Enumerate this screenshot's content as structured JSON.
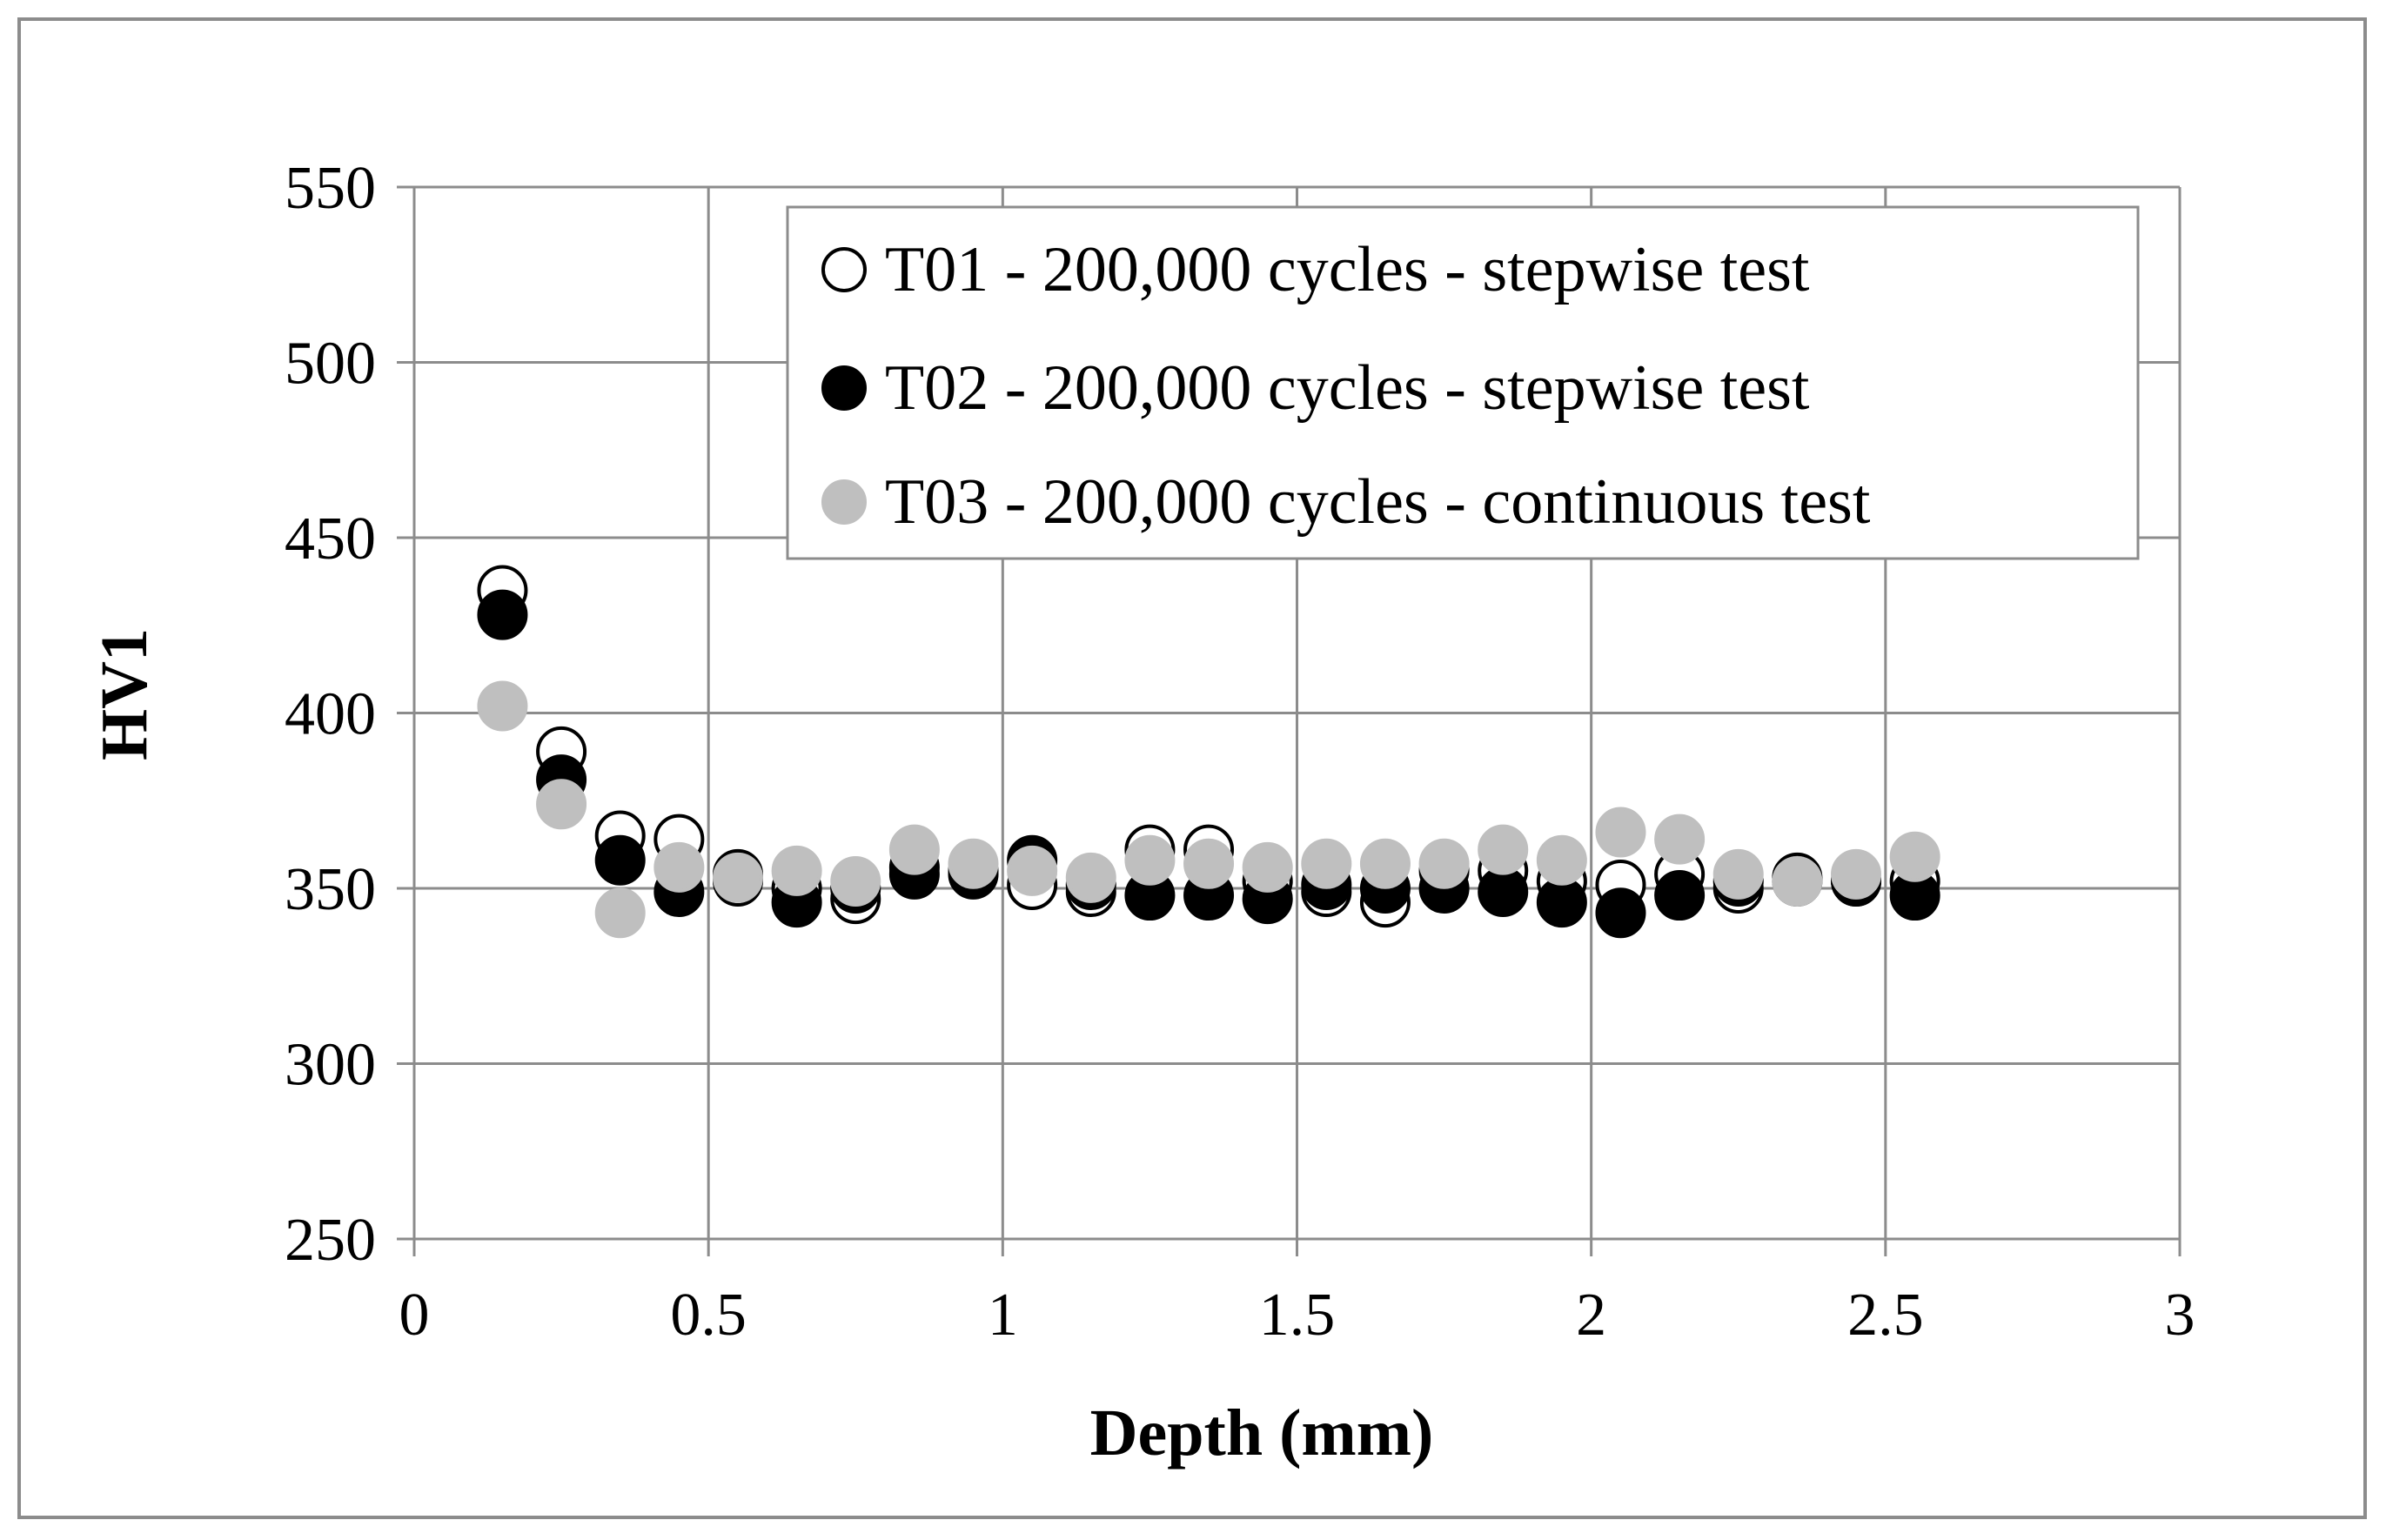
{
  "chart_data": {
    "type": "scatter",
    "title": "",
    "xlabel": "Depth (mm)",
    "ylabel": "HV1",
    "xlim": [
      0,
      3
    ],
    "ylim": [
      250,
      550
    ],
    "xticks": [
      0,
      0.5,
      1,
      1.5,
      2,
      2.5,
      3
    ],
    "xtick_labels": [
      "0",
      "0.5",
      "1",
      "1.5",
      "2",
      "2.5",
      "3"
    ],
    "yticks": [
      250,
      300,
      350,
      400,
      450,
      500,
      550
    ],
    "ytick_labels": [
      "250",
      "300",
      "350",
      "400",
      "450",
      "500",
      "550"
    ],
    "grid": true,
    "legend_position": "top-right",
    "series": [
      {
        "name": "T01 - 200,000 cycles - stepwise test",
        "marker": "open-circle",
        "color": "#000000",
        "x": [
          0.15,
          0.25,
          0.35,
          0.45,
          0.55,
          0.65,
          0.75,
          0.85,
          0.95,
          1.05,
          1.15,
          1.25,
          1.35,
          1.45,
          1.55,
          1.65,
          1.75,
          1.85,
          1.95,
          2.05,
          2.15,
          2.25,
          2.35,
          2.45,
          2.55
        ],
        "y": [
          435,
          389,
          365,
          364,
          352,
          350,
          347,
          356,
          355,
          351,
          349,
          361,
          361,
          352,
          349,
          346,
          355,
          355,
          352,
          351,
          354,
          350,
          353,
          352,
          352
        ]
      },
      {
        "name": "T02 - 200,000 cycles - stepwise test",
        "marker": "filled-circle",
        "color": "#000000",
        "x": [
          0.15,
          0.25,
          0.35,
          0.45,
          0.55,
          0.65,
          0.75,
          0.85,
          0.95,
          1.05,
          1.15,
          1.25,
          1.35,
          1.45,
          1.55,
          1.65,
          1.75,
          1.85,
          1.95,
          2.05,
          2.15,
          2.25,
          2.35,
          2.45,
          2.55
        ],
        "y": [
          428,
          381,
          358,
          349,
          354,
          346,
          350,
          354,
          354,
          358,
          351,
          348,
          348,
          347,
          351,
          350,
          350,
          349,
          346,
          343,
          348,
          352,
          352,
          352,
          348
        ]
      },
      {
        "name": "T03 - 200,000 cycles - continuous test",
        "marker": "filled-circle",
        "color": "#bfbfbf",
        "x": [
          0.15,
          0.25,
          0.35,
          0.45,
          0.55,
          0.65,
          0.75,
          0.85,
          0.95,
          1.05,
          1.15,
          1.25,
          1.35,
          1.45,
          1.55,
          1.65,
          1.75,
          1.85,
          1.95,
          2.05,
          2.15,
          2.25,
          2.35,
          2.45,
          2.55
        ],
        "y": [
          402,
          374,
          343,
          356,
          353,
          355,
          352,
          361,
          357,
          355,
          353,
          358,
          357,
          356,
          357,
          357,
          357,
          361,
          358,
          366,
          364,
          354,
          352,
          354,
          359
        ]
      }
    ]
  },
  "colors": {
    "grid": "#8c8c8c",
    "frame": "#8c8c8c",
    "marker_outline": "#000000",
    "t03_fill": "#bfbfbf"
  }
}
